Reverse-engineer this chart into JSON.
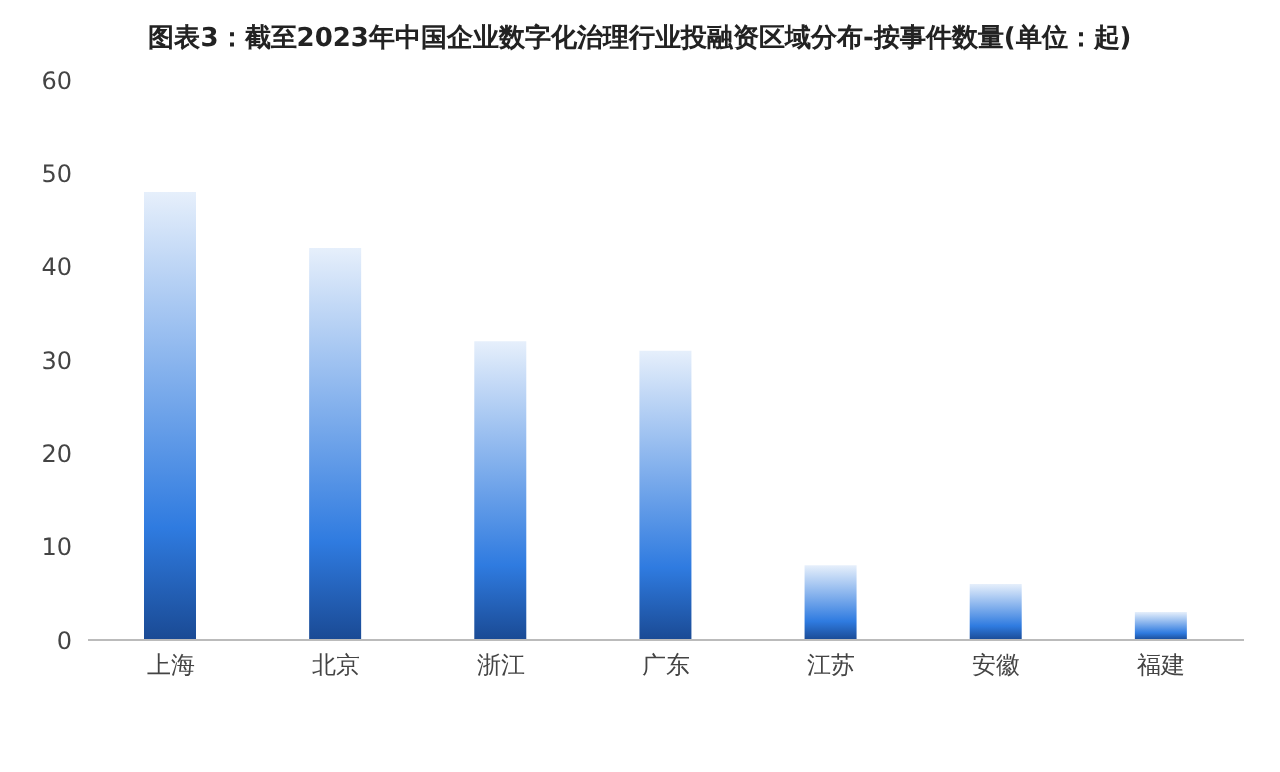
{
  "chart_data": {
    "type": "bar",
    "title": "图表3：截至2023年中国企业数字化治理行业投融资区域分布-按事件数量(单位：起)",
    "categories": [
      "上海",
      "北京",
      "浙江",
      "广东",
      "江苏",
      "安徽",
      "福建"
    ],
    "values": [
      48,
      42,
      32,
      31,
      8,
      6,
      3
    ],
    "color": "#2f7be0",
    "ylim": [
      0,
      60
    ],
    "yticks": [
      0,
      10,
      20,
      30,
      40,
      50,
      60
    ],
    "grid": false
  }
}
